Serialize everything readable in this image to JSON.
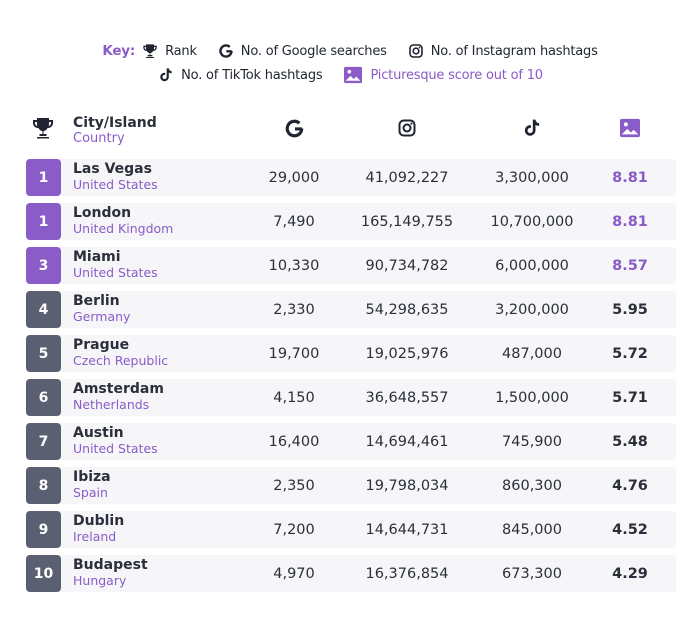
{
  "key": {
    "title": "Key:",
    "rank": "Rank",
    "google": "No. of Google searches",
    "instagram": "No. of Instagram hashtags",
    "tiktok": "No. of TikTok hashtags",
    "picturesque": "Picturesque score out of 10"
  },
  "header": {
    "city": "City/Island",
    "country": "Country"
  },
  "colors": {
    "accent": "#8a5cc7",
    "rank_regular": "#5b5f72",
    "row_bg": "#f6f6f9"
  },
  "rows": [
    {
      "rank": "1",
      "city": "Las Vegas",
      "country": "United States",
      "google": "29,000",
      "instagram": "41,092,227",
      "tiktok": "3,300,000",
      "score": "8.81",
      "top": true
    },
    {
      "rank": "1",
      "city": "London",
      "country": "United Kingdom",
      "google": "7,490",
      "instagram": "165,149,755",
      "tiktok": "10,700,000",
      "score": "8.81",
      "top": true
    },
    {
      "rank": "3",
      "city": "Miami",
      "country": "United States",
      "google": "10,330",
      "instagram": "90,734,782",
      "tiktok": "6,000,000",
      "score": "8.57",
      "top": true
    },
    {
      "rank": "4",
      "city": "Berlin",
      "country": "Germany",
      "google": "2,330",
      "instagram": "54,298,635",
      "tiktok": "3,200,000",
      "score": "5.95",
      "top": false
    },
    {
      "rank": "5",
      "city": "Prague",
      "country": "Czech Republic",
      "google": "19,700",
      "instagram": "19,025,976",
      "tiktok": "487,000",
      "score": "5.72",
      "top": false
    },
    {
      "rank": "6",
      "city": "Amsterdam",
      "country": "Netherlands",
      "google": "4,150",
      "instagram": "36,648,557",
      "tiktok": "1,500,000",
      "score": "5.71",
      "top": false
    },
    {
      "rank": "7",
      "city": "Austin",
      "country": "United States",
      "google": "16,400",
      "instagram": "14,694,461",
      "tiktok": "745,900",
      "score": "5.48",
      "top": false
    },
    {
      "rank": "8",
      "city": "Ibiza",
      "country": "Spain",
      "google": "2,350",
      "instagram": "19,798,034",
      "tiktok": "860,300",
      "score": "4.76",
      "top": false
    },
    {
      "rank": "9",
      "city": "Dublin",
      "country": "Ireland",
      "google": "7,200",
      "instagram": "14,644,731",
      "tiktok": "845,000",
      "score": "4.52",
      "top": false
    },
    {
      "rank": "10",
      "city": "Budapest",
      "country": "Hungary",
      "google": "4,970",
      "instagram": "16,376,854",
      "tiktok": "673,300",
      "score": "4.29",
      "top": false
    }
  ]
}
